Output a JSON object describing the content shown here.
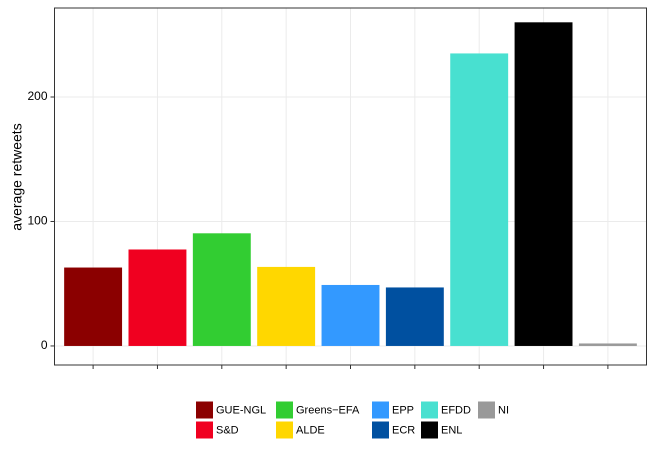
{
  "chart_data": {
    "type": "bar",
    "y_label": "average retweets",
    "categories": [
      "GUE-NGL",
      "S&D",
      "Greens−EFA",
      "ALDE",
      "EPP",
      "ECR",
      "EFDD",
      "ENL",
      "NI"
    ],
    "values": [
      63,
      77.5,
      90.5,
      63.5,
      49,
      47,
      235,
      260,
      2
    ],
    "colors": [
      "#8b0000",
      "#f00020",
      "#32cd32",
      "#ffd700",
      "#3399ff",
      "#0050a0",
      "#48e0d0",
      "#000000",
      "#999999"
    ],
    "ylim": [
      -15.3,
      271.5
    ],
    "yticks": [
      0,
      100,
      200
    ],
    "grid": true
  }
}
